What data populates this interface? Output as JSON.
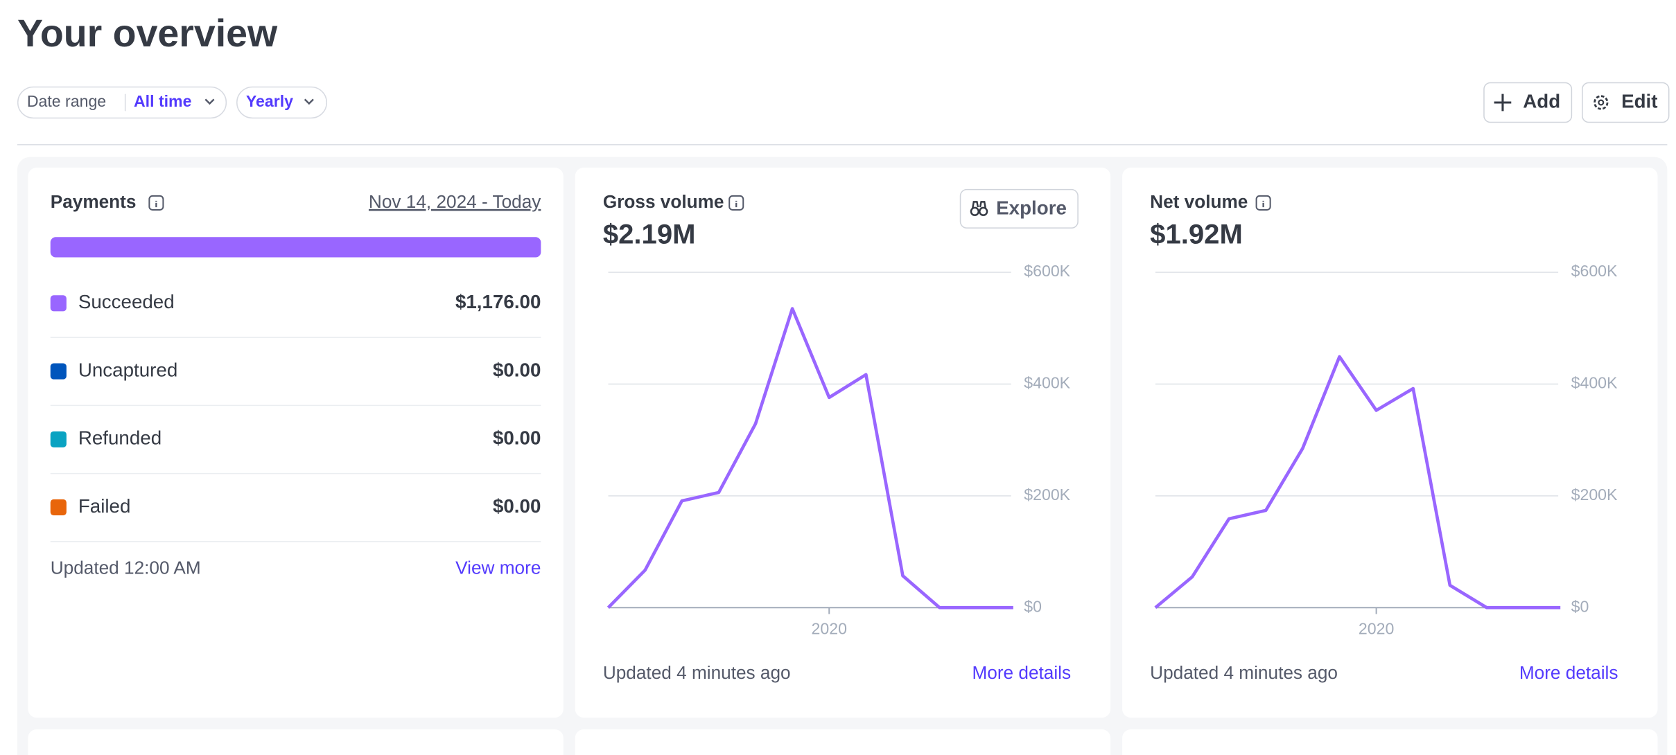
{
  "header": {
    "title": "Your overview"
  },
  "filters": {
    "date_range_label": "Date range",
    "date_range_value": "All time",
    "interval": "Yearly"
  },
  "actions": {
    "add": "Add",
    "edit": "Edit"
  },
  "payments": {
    "title": "Payments",
    "date_range": "Nov 14, 2024 - Today",
    "statuses": [
      {
        "label": "Succeeded",
        "value": "$1,176.00",
        "color": "#9966ff"
      },
      {
        "label": "Uncaptured",
        "value": "$0.00",
        "color": "#0055bc"
      },
      {
        "label": "Refunded",
        "value": "$0.00",
        "color": "#0aa3c2"
      },
      {
        "label": "Failed",
        "value": "$0.00",
        "color": "#e8650b"
      }
    ],
    "updated": "Updated 12:00 AM",
    "link": "View more"
  },
  "chart_data": [
    {
      "type": "line",
      "title": "Gross volume",
      "summary": "$2.19M",
      "button": "Explore",
      "x": [
        2014,
        2015,
        2016,
        2017,
        2018,
        2019,
        2020,
        2021,
        2022,
        2023,
        2024,
        2025
      ],
      "series": [
        {
          "name": "Gross volume",
          "color": "#9966ff",
          "values": [
            0,
            67000,
            191000,
            206000,
            329000,
            535000,
            376000,
            417000,
            57000,
            0,
            0,
            0
          ]
        }
      ],
      "xlim": [
        2014,
        2025
      ],
      "xticks": [
        2020
      ],
      "ylim": [
        0,
        600000
      ],
      "yticks": [
        {
          "value": 0,
          "label": "$0"
        },
        {
          "value": 200000,
          "label": "$200K"
        },
        {
          "value": 400000,
          "label": "$400K"
        },
        {
          "value": 600000,
          "label": "$600K"
        }
      ],
      "grid": true,
      "footer": "Updated 4 minutes ago",
      "link": "More details"
    },
    {
      "type": "line",
      "title": "Net volume",
      "summary": "$1.92M",
      "x": [
        2014,
        2015,
        2016,
        2017,
        2018,
        2019,
        2020,
        2021,
        2022,
        2023,
        2024,
        2025
      ],
      "series": [
        {
          "name": "Net volume",
          "color": "#9966ff",
          "values": [
            0,
            55000,
            159000,
            174000,
            285000,
            449000,
            353000,
            392000,
            40000,
            0,
            0,
            0
          ]
        }
      ],
      "xlim": [
        2014,
        2025
      ],
      "xticks": [
        2020
      ],
      "ylim": [
        0,
        600000
      ],
      "yticks": [
        {
          "value": 0,
          "label": "$0"
        },
        {
          "value": 200000,
          "label": "$200K"
        },
        {
          "value": 400000,
          "label": "$400K"
        },
        {
          "value": 600000,
          "label": "$600K"
        }
      ],
      "grid": true,
      "footer": "Updated 4 minutes ago",
      "link": "More details"
    }
  ]
}
